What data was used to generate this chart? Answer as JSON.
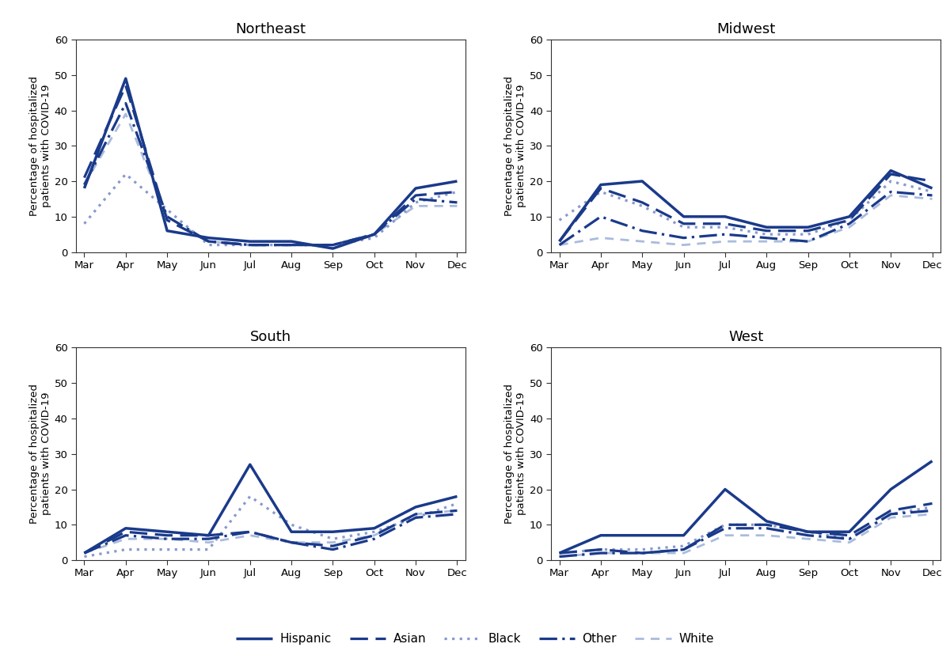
{
  "months": [
    "Mar",
    "Apr",
    "May",
    "Jun",
    "Jul",
    "Aug",
    "Sep",
    "Oct",
    "Nov",
    "Dec"
  ],
  "regions": [
    "Northeast",
    "Midwest",
    "South",
    "West"
  ],
  "races": [
    "Hispanic",
    "Asian",
    "Black",
    "Other",
    "White"
  ],
  "data": {
    "Northeast": {
      "Hispanic": [
        18,
        49,
        6,
        4,
        3,
        3,
        1,
        5,
        18,
        20
      ],
      "Asian": [
        21,
        47,
        9,
        3,
        2,
        2,
        2,
        5,
        16,
        17
      ],
      "Black": [
        8,
        22,
        12,
        2,
        2,
        2,
        2,
        4,
        14,
        17
      ],
      "Other": [
        19,
        42,
        10,
        3,
        2,
        2,
        2,
        5,
        15,
        14
      ],
      "White": [
        19,
        39,
        10,
        3,
        2,
        2,
        2,
        5,
        13,
        13
      ]
    },
    "Midwest": {
      "Hispanic": [
        3,
        19,
        20,
        10,
        10,
        7,
        7,
        10,
        23,
        18
      ],
      "Asian": [
        3,
        18,
        14,
        8,
        8,
        6,
        6,
        9,
        22,
        20
      ],
      "Black": [
        9,
        17,
        13,
        7,
        7,
        5,
        5,
        9,
        20,
        17
      ],
      "Other": [
        2,
        10,
        6,
        4,
        5,
        4,
        3,
        8,
        17,
        16
      ],
      "White": [
        2,
        4,
        3,
        2,
        3,
        3,
        3,
        7,
        16,
        15
      ]
    },
    "South": {
      "Hispanic": [
        2,
        9,
        8,
        7,
        27,
        8,
        8,
        9,
        15,
        18
      ],
      "Asian": [
        2,
        8,
        7,
        7,
        8,
        5,
        4,
        7,
        13,
        14
      ],
      "Black": [
        1,
        3,
        3,
        3,
        18,
        10,
        6,
        8,
        12,
        16
      ],
      "Other": [
        2,
        7,
        6,
        6,
        8,
        5,
        3,
        6,
        12,
        13
      ],
      "White": [
        2,
        6,
        6,
        5,
        7,
        5,
        5,
        7,
        13,
        14
      ]
    },
    "West": {
      "Hispanic": [
        2,
        7,
        7,
        7,
        20,
        11,
        8,
        8,
        20,
        28
      ],
      "Asian": [
        2,
        3,
        2,
        3,
        10,
        10,
        8,
        7,
        14,
        16
      ],
      "Black": [
        2,
        3,
        3,
        4,
        10,
        10,
        8,
        6,
        13,
        15
      ],
      "Other": [
        1,
        2,
        2,
        3,
        9,
        9,
        7,
        6,
        13,
        14
      ],
      "White": [
        1,
        2,
        2,
        2,
        7,
        7,
        6,
        5,
        12,
        13
      ]
    }
  },
  "ylim": [
    0,
    60
  ],
  "yticks": [
    0,
    10,
    20,
    30,
    40,
    50,
    60
  ],
  "ylabel": "Percentage of hospitalized\npatients with COVID-19",
  "title_fontsize": 13,
  "axis_fontsize": 9.5,
  "tick_fontsize": 9.5,
  "legend_fontsize": 11
}
